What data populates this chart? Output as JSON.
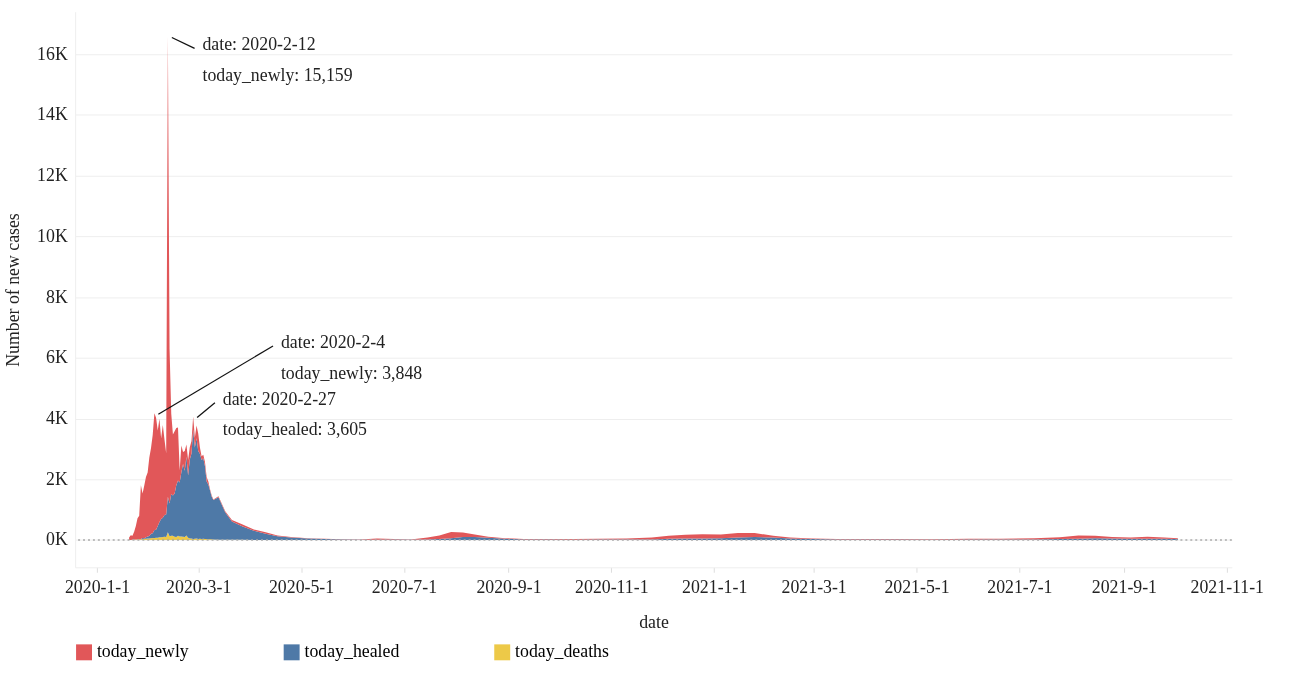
{
  "chart_data": {
    "type": "area",
    "stacked": true,
    "xlabel": "date",
    "ylabel": "Number of new cases",
    "x": [
      "2020-01-20",
      "2020-01-21",
      "2020-01-22",
      "2020-01-23",
      "2020-01-24",
      "2020-01-25",
      "2020-01-26",
      "2020-01-27",
      "2020-01-28",
      "2020-01-29",
      "2020-01-30",
      "2020-01-31",
      "2020-02-01",
      "2020-02-02",
      "2020-02-03",
      "2020-02-04",
      "2020-02-05",
      "2020-02-06",
      "2020-02-07",
      "2020-02-08",
      "2020-02-09",
      "2020-02-10",
      "2020-02-11",
      "2020-02-12",
      "2020-02-13",
      "2020-02-14",
      "2020-02-15",
      "2020-02-16",
      "2020-02-17",
      "2020-02-18",
      "2020-02-19",
      "2020-02-20",
      "2020-02-21",
      "2020-02-22",
      "2020-02-23",
      "2020-02-24",
      "2020-02-25",
      "2020-02-26",
      "2020-02-27",
      "2020-02-28",
      "2020-02-29",
      "2020-03-01",
      "2020-03-02",
      "2020-03-03",
      "2020-03-04",
      "2020-03-05",
      "2020-03-06",
      "2020-03-07",
      "2020-03-08",
      "2020-03-09",
      "2020-03-10",
      "2020-03-13",
      "2020-03-17",
      "2020-03-21",
      "2020-03-27",
      "2020-04-03",
      "2020-04-10",
      "2020-04-17",
      "2020-04-25",
      "2020-05-05",
      "2020-05-15",
      "2020-05-25",
      "2020-06-05",
      "2020-06-15",
      "2020-06-25",
      "2020-07-05",
      "2020-07-15",
      "2020-07-22",
      "2020-07-29",
      "2020-08-05",
      "2020-08-12",
      "2020-08-20",
      "2020-08-30",
      "2020-09-10",
      "2020-09-25",
      "2020-10-10",
      "2020-10-25",
      "2020-11-10",
      "2020-11-25",
      "2020-12-05",
      "2020-12-15",
      "2020-12-25",
      "2021-01-05",
      "2021-01-15",
      "2021-01-25",
      "2021-02-05",
      "2021-02-15",
      "2021-02-28",
      "2021-03-15",
      "2021-04-01",
      "2021-04-20",
      "2021-05-10",
      "2021-06-01",
      "2021-06-20",
      "2021-07-10",
      "2021-07-25",
      "2021-08-05",
      "2021-08-15",
      "2021-08-25",
      "2021-09-05",
      "2021-09-15",
      "2021-09-25",
      "2021-10-03"
    ],
    "series": [
      {
        "name": "today_deaths",
        "color": "#edc948",
        "values": [
          3,
          3,
          8,
          8,
          16,
          15,
          24,
          26,
          26,
          38,
          43,
          46,
          45,
          57,
          64,
          65,
          73,
          73,
          86,
          89,
          97,
          108,
          97,
          254,
          121,
          143,
          142,
          105,
          98,
          136,
          114,
          118,
          109,
          97,
          150,
          71,
          52,
          52,
          29,
          44,
          47,
          35,
          42,
          31,
          38,
          31,
          30,
          28,
          27,
          22,
          17,
          10,
          10,
          5,
          5,
          3,
          2,
          1,
          0,
          0,
          0,
          0,
          0,
          0,
          0,
          0,
          0,
          0,
          0,
          0,
          0,
          0,
          0,
          0,
          0,
          0,
          0,
          0,
          0,
          0,
          0,
          0,
          0,
          0,
          0,
          0,
          0,
          0,
          0,
          0,
          0,
          0,
          0,
          0,
          0,
          0,
          0,
          0,
          0,
          0,
          0,
          0,
          0
        ]
      },
      {
        "name": "today_healed",
        "color": "#4e79a7",
        "values": [
          0,
          0,
          0,
          6,
          3,
          11,
          2,
          9,
          43,
          21,
          47,
          72,
          85,
          147,
          157,
          262,
          261,
          387,
          510,
          600,
          632,
          716,
          744,
          1171,
          1081,
          1373,
          1323,
          1425,
          1701,
          1824,
          1779,
          2109,
          2394,
          2182,
          2589,
          2052,
          2596,
          2800,
          3605,
          3000,
          3300,
          2900,
          2800,
          2600,
          2650,
          2400,
          1900,
          1800,
          1600,
          1400,
          1300,
          1400,
          900,
          600,
          450,
          300,
          200,
          120,
          80,
          50,
          30,
          20,
          10,
          10,
          15,
          10,
          20,
          30,
          60,
          100,
          100,
          70,
          40,
          20,
          15,
          10,
          15,
          15,
          20,
          40,
          50,
          50,
          60,
          80,
          100,
          80,
          50,
          30,
          15,
          15,
          15,
          10,
          15,
          15,
          20,
          30,
          40,
          60,
          50,
          40,
          40,
          40,
          30
        ]
      },
      {
        "name": "today_newly",
        "color": "#e15759",
        "values": [
          77,
          149,
          131,
          259,
          444,
          688,
          769,
          1771,
          1459,
          1737,
          1982,
          2102,
          2590,
          2829,
          3235,
          3848,
          3694,
          3143,
          3399,
          2656,
          3062,
          2478,
          2015,
          15159,
          5090,
          2641,
          2009,
          2048,
          1886,
          1749,
          394,
          889,
          397,
          648,
          409,
          508,
          406,
          406,
          433,
          327,
          427,
          573,
          202,
          125,
          119,
          139,
          143,
          99,
          44,
          40,
          19,
          30,
          40,
          50,
          60,
          40,
          50,
          30,
          20,
          10,
          10,
          5,
          10,
          40,
          20,
          10,
          60,
          120,
          200,
          150,
          80,
          40,
          20,
          15,
          15,
          20,
          25,
          30,
          60,
          100,
          120,
          140,
          120,
          150,
          130,
          60,
          30,
          20,
          15,
          20,
          15,
          15,
          25,
          25,
          40,
          60,
          110,
          80,
          50,
          40,
          70,
          40,
          30
        ]
      }
    ],
    "xlim": [
      "2019-12-19",
      "2021-11-04"
    ],
    "xticks": [
      {
        "value": "2020-01-01",
        "label": "2020-1-1"
      },
      {
        "value": "2020-03-01",
        "label": "2020-3-1"
      },
      {
        "value": "2020-05-01",
        "label": "2020-5-1"
      },
      {
        "value": "2020-07-01",
        "label": "2020-7-1"
      },
      {
        "value": "2020-09-01",
        "label": "2020-9-1"
      },
      {
        "value": "2020-11-01",
        "label": "2020-11-1"
      },
      {
        "value": "2021-01-01",
        "label": "2021-1-1"
      },
      {
        "value": "2021-03-01",
        "label": "2021-3-1"
      },
      {
        "value": "2021-05-01",
        "label": "2021-5-1"
      },
      {
        "value": "2021-07-01",
        "label": "2021-7-1"
      },
      {
        "value": "2021-09-01",
        "label": "2021-9-1"
      },
      {
        "value": "2021-11-01",
        "label": "2021-11-1"
      }
    ],
    "ylim": [
      -900,
      17400
    ],
    "yticks": [
      {
        "value": 0,
        "label": "0K"
      },
      {
        "value": 2000,
        "label": "2K"
      },
      {
        "value": 4000,
        "label": "4K"
      },
      {
        "value": 6000,
        "label": "6K"
      },
      {
        "value": 8000,
        "label": "8K"
      },
      {
        "value": 10000,
        "label": "10K"
      },
      {
        "value": 12000,
        "label": "12K"
      },
      {
        "value": 14000,
        "label": "14K"
      },
      {
        "value": 16000,
        "label": "16K"
      }
    ],
    "ref_lines": [
      {
        "axis": "y",
        "value": 0,
        "color": "#aaaaaa",
        "line_style": "dotted"
      }
    ],
    "annotations": [
      {
        "text": "date: 2020-2-12\ntoday_newly: 15,159",
        "x": "2020-02-12",
        "y": 16584
      },
      {
        "text": "date: 2020-2-4\ntoday_newly: 3,848",
        "x": "2020-02-04",
        "y": 4175
      },
      {
        "text": "date: 2020-2-27\ntoday_healed: 3,605",
        "x": "2020-02-27",
        "y": 4067
      }
    ],
    "grid": "y",
    "legend": "bottom"
  }
}
